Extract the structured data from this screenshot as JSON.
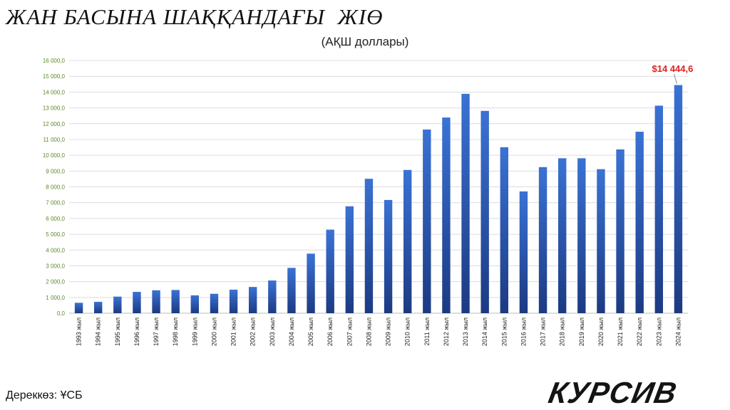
{
  "chart_data": {
    "type": "bar",
    "title": "ЖАН БАСЫНА ШАҚҚАНДАҒЫ  ЖІӨ",
    "subtitle": "(АҚШ доллары)",
    "xlabel": "",
    "ylabel": "",
    "categories": [
      "1993 жыл",
      "1994 жыл",
      "1995 жыл",
      "1996 жыл",
      "1997 жыл",
      "1998 жыл",
      "1999 жыл",
      "2000 жыл",
      "2001 жыл",
      "2002 жыл",
      "2003 жыл",
      "2004 жыл",
      "2005 жыл",
      "2006 жыл",
      "2007 жыл",
      "2008 жыл",
      "2009 жыл",
      "2010 жыл",
      "2011 жыл",
      "2012 жыл",
      "2013 жыл",
      "2014 жыл",
      "2015 жыл",
      "2016 жыл",
      "2017 жыл",
      "2018 жыл",
      "2019 жыл",
      "2020 жыл",
      "2021 жыл",
      "2022 жыл",
      "2023 жыл",
      "2024 жыл"
    ],
    "values": [
      660,
      720,
      1050,
      1350,
      1450,
      1470,
      1130,
      1230,
      1490,
      1660,
      2070,
      2870,
      3770,
      5290,
      6770,
      8510,
      7170,
      9070,
      11630,
      12390,
      13890,
      12810,
      10510,
      7710,
      9250,
      9810,
      9810,
      9120,
      10370,
      11490,
      13140,
      14444.6
    ],
    "yticks": [
      "0,0",
      "1 000,0",
      "2 000,0",
      "3 000,0",
      "4 000,0",
      "5 000,0",
      "6 000,0",
      "7 000,0",
      "8 000,0",
      "9 000,0",
      "10 000,0",
      "11 000,0",
      "12 000,0",
      "13 000,0",
      "14 000,0",
      "15 000,0",
      "16 000,0"
    ],
    "ylim": [
      0,
      16000
    ],
    "grid": true,
    "legend": "none",
    "annotation": {
      "text": "$14 444,6",
      "category_index": 31
    },
    "colors": {
      "bar_top": "#3a72d4",
      "bar_bottom": "#1c3a82",
      "tick_label": "#5a8a2a",
      "annotation": "#e02020",
      "grid": "#dcdcdc"
    }
  },
  "footer": {
    "source": "Дереккөз: ҰСБ",
    "logo": "КУРСИВ"
  }
}
